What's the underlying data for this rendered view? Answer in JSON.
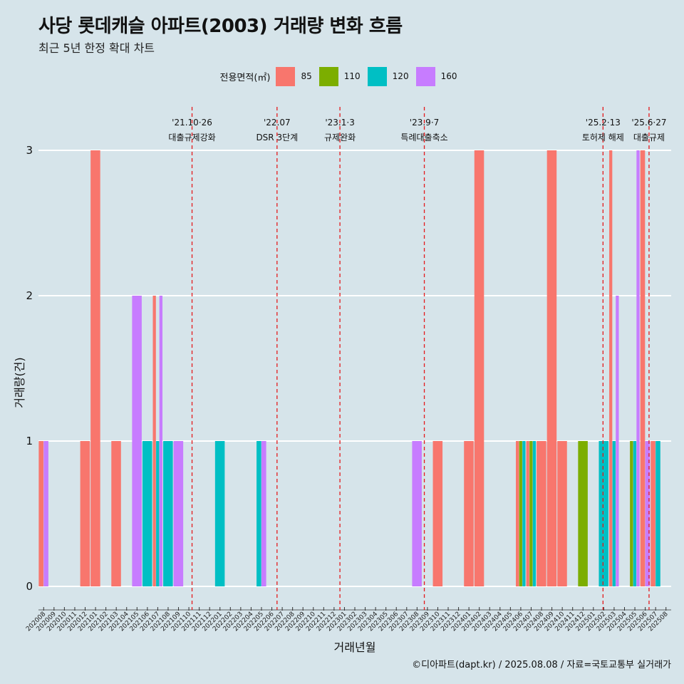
{
  "title": "사당 롯데캐슬 아파트(2003) 거래량 변화 흐름",
  "subtitle": "최근 5년 한정 확대 차트",
  "footer": "©디아파트(dapt.kr) / 2025.08.08 / 자료=국토교통부 실거래가",
  "chart_data": {
    "type": "bar",
    "xlabel": "거래년월",
    "ylabel": "거래량(건)",
    "ylim": [
      0,
      3
    ],
    "y_ticks": [
      0,
      1,
      2,
      3
    ],
    "legend_title": "전용면적(㎡)",
    "legend_position": "top",
    "grid": true,
    "categories": [
      "202008",
      "202009",
      "202010",
      "202011",
      "202012",
      "202101",
      "202102",
      "202103",
      "202104",
      "202105",
      "202106",
      "202107",
      "202108",
      "202109",
      "202110",
      "202111",
      "202112",
      "202201",
      "202202",
      "202203",
      "202204",
      "202205",
      "202206",
      "202207",
      "202208",
      "202209",
      "202210",
      "202211",
      "202212",
      "202301",
      "202302",
      "202303",
      "202304",
      "202305",
      "202306",
      "202307",
      "202308",
      "202309",
      "202310",
      "202311",
      "202312",
      "202401",
      "202402",
      "202403",
      "202404",
      "202405",
      "202406",
      "202407",
      "202408",
      "202409",
      "202410",
      "202411",
      "202412",
      "202501",
      "202502",
      "202503",
      "202504",
      "202505",
      "202506",
      "202507",
      "202508"
    ],
    "series": [
      {
        "name": "85",
        "color": "#f8766d"
      },
      {
        "name": "110",
        "color": "#7cae00"
      },
      {
        "name": "120",
        "color": "#00bfc4"
      },
      {
        "name": "160",
        "color": "#c77cff"
      }
    ],
    "bars": [
      {
        "month": "202008",
        "values": {
          "85": 1,
          "160": 1
        }
      },
      {
        "month": "202012",
        "values": {
          "85": 1
        }
      },
      {
        "month": "202101",
        "values": {
          "85": 3
        }
      },
      {
        "month": "202103",
        "values": {
          "85": 1
        }
      },
      {
        "month": "202105",
        "values": {
          "160": 2
        }
      },
      {
        "month": "202106",
        "values": {
          "120": 1
        }
      },
      {
        "month": "202107",
        "values": {
          "85": 2,
          "120": 1,
          "160": 2
        }
      },
      {
        "month": "202108",
        "values": {
          "120": 1
        }
      },
      {
        "month": "202109",
        "values": {
          "160": 1
        }
      },
      {
        "month": "202201",
        "values": {
          "120": 1
        }
      },
      {
        "month": "202205",
        "values": {
          "120": 1,
          "160": 1
        }
      },
      {
        "month": "202308",
        "values": {
          "160": 1
        }
      },
      {
        "month": "202310",
        "values": {
          "85": 1
        }
      },
      {
        "month": "202401",
        "values": {
          "85": 1
        }
      },
      {
        "month": "202402",
        "values": {
          "85": 3
        }
      },
      {
        "month": "202406",
        "values": {
          "85": 1,
          "110": 1,
          "120": 1
        }
      },
      {
        "month": "202407",
        "values": {
          "85": 1,
          "110": 1,
          "120": 1
        }
      },
      {
        "month": "202408",
        "values": {
          "85": 1
        }
      },
      {
        "month": "202409",
        "values": {
          "85": 3
        }
      },
      {
        "month": "202410",
        "values": {
          "85": 1
        }
      },
      {
        "month": "202412",
        "values": {
          "110": 1
        }
      },
      {
        "month": "202502",
        "values": {
          "120": 1
        }
      },
      {
        "month": "202503",
        "values": {
          "85": 3,
          "120": 1,
          "160": 2
        }
      },
      {
        "month": "202505",
        "values": {
          "110": 1,
          "120": 1,
          "160": 3
        }
      },
      {
        "month": "202506",
        "values": {
          "85": 3,
          "160": 1
        }
      },
      {
        "month": "202507",
        "values": {
          "85": 1,
          "120": 1
        }
      }
    ],
    "events": [
      {
        "date": "2021-10-26",
        "label_date": "'21.10·26",
        "label_text": "대출규제강화"
      },
      {
        "date": "2022-07-01",
        "label_date": "'22.07",
        "label_text": "DSR 3단계"
      },
      {
        "date": "2023-01-03",
        "label_date": "'23.1·3",
        "label_text": "규제완화"
      },
      {
        "date": "2023-09-07",
        "label_date": "'23.9·7",
        "label_text": "특례대출축소"
      },
      {
        "date": "2025-02-13",
        "label_date": "'25.2·13",
        "label_text": "토허제 해제"
      },
      {
        "date": "2025-06-27",
        "label_date": "'25.6·27",
        "label_text": "대출규제"
      }
    ],
    "event_line_color": "#e41a1c"
  }
}
